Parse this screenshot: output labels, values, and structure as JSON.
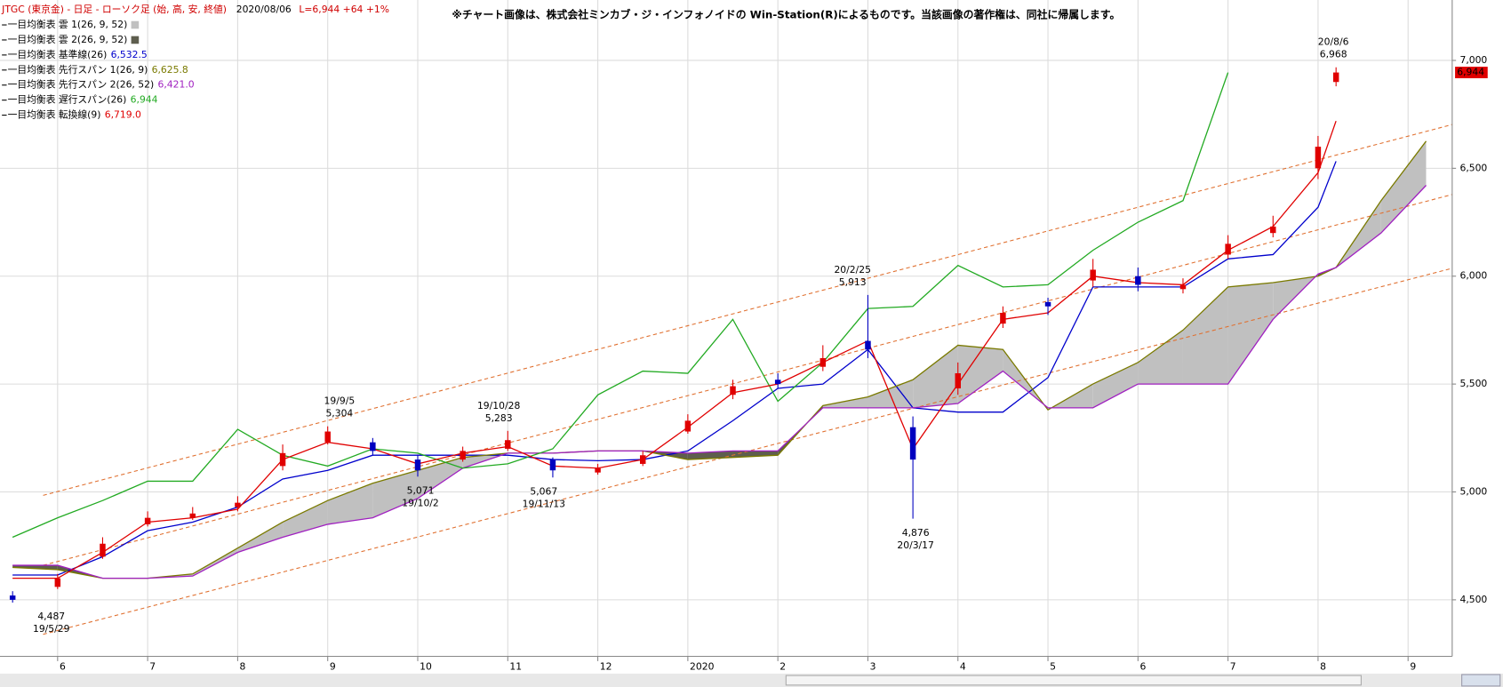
{
  "chart_data": {
    "type": "candlestick",
    "title": "JTGC (東京金) - 日足 - ローソク足 (始, 高, 安, 終値)",
    "date": "2020/08/06",
    "quote": "L=6,944 +64 +1%",
    "note": "※チャート画像は、株式会社ミンカブ・ジ・インフォノイドの Win-Station(R)によるものです。当該画像の著作権は、同社に帰属します。",
    "x": [
      5.5,
      6,
      6.5,
      7,
      7.5,
      8,
      8.5,
      9,
      9.5,
      10,
      10.5,
      11,
      11.5,
      12,
      12.5,
      13,
      13.5,
      14,
      14.5,
      15,
      15.5,
      16,
      16.5,
      17,
      17.5,
      18,
      18.5,
      19,
      19.5,
      20,
      20.2,
      20.7,
      21.2
    ],
    "xlim": [
      5.36,
      21.49
    ],
    "xticks": [
      6,
      7,
      8,
      9,
      10,
      11,
      12,
      {
        "value": 13,
        "label": "2020"
      },
      {
        "value": 14,
        "label": "2"
      },
      {
        "value": 15,
        "label": "3"
      },
      {
        "value": 16,
        "label": "4"
      },
      {
        "value": 17,
        "label": "5"
      },
      {
        "value": 18,
        "label": "6"
      },
      {
        "value": 19,
        "label": "7"
      },
      {
        "value": 20,
        "label": "8"
      },
      {
        "value": 21,
        "label": "9"
      }
    ],
    "ylim": [
      4238,
      7280
    ],
    "yticks": [
      {
        "value": 4500,
        "label": "4,500"
      },
      {
        "value": 5000,
        "label": "5,000"
      },
      {
        "value": 5500,
        "label": "5,500"
      },
      {
        "value": 6000,
        "label": "6,000"
      },
      {
        "value": 6500,
        "label": "6,500"
      },
      {
        "value": 7000,
        "label": "7,000"
      }
    ],
    "grid": true,
    "ohlc": {
      "up_color": "#e00000",
      "down_color": "#0000c0",
      "open": [
        4520,
        4560,
        4700,
        4850,
        4880,
        4930,
        5120,
        5230,
        5230,
        5150,
        5150,
        5200,
        5150,
        5090,
        5130,
        5280,
        5450,
        5520,
        5580,
        5700,
        5300,
        5480,
        5780,
        5880,
        5980,
        6000,
        5940,
        6100,
        6200,
        6500,
        6900,
        null,
        null
      ],
      "high": [
        4540,
        4620,
        4790,
        4910,
        4930,
        4980,
        5220,
        5304,
        5250,
        5170,
        5210,
        5283,
        5160,
        5130,
        5190,
        5360,
        5520,
        5550,
        5680,
        5913,
        5350,
        5600,
        5860,
        5900,
        6080,
        6040,
        5990,
        6190,
        6280,
        6650,
        6968,
        null,
        null
      ],
      "low": [
        4487,
        4550,
        4690,
        4840,
        4870,
        4910,
        5100,
        5220,
        5170,
        5071,
        5140,
        5190,
        5067,
        5080,
        5120,
        5270,
        5430,
        5480,
        5560,
        5620,
        4876,
        5450,
        5760,
        5820,
        5950,
        5930,
        5920,
        6080,
        6180,
        6450,
        6880,
        null,
        null
      ],
      "close": [
        4500,
        4600,
        4760,
        4880,
        4900,
        4950,
        5180,
        5280,
        5190,
        5100,
        5190,
        5240,
        5100,
        5110,
        5170,
        5330,
        5490,
        5500,
        5620,
        5660,
        5150,
        5550,
        5830,
        5860,
        6030,
        5960,
        5960,
        6150,
        6230,
        6600,
        6944,
        null,
        null
      ]
    },
    "cloud": {
      "names": [
        "一目均衡表 雲 1(26, 9, 52)",
        "一目均衡表 雲 2(26, 9, 52)"
      ],
      "colors": [
        "#c0c0c0",
        "#5e5e4e"
      ]
    },
    "series": [
      {
        "name": "一目均衡表 基準線(26)",
        "color": "#0000cc",
        "legend_value": {
          "value": 6532.5,
          "label": "6,532.5"
        },
        "values": [
          4615,
          4615,
          4700,
          4820,
          4860,
          4930,
          5060,
          5100,
          5170,
          5170,
          5170,
          5170,
          5150,
          5145,
          5150,
          5190,
          5330,
          5480,
          5500,
          5660,
          5390,
          5370,
          5370,
          5530,
          5950,
          5950,
          5950,
          6080,
          6100,
          6320,
          6532.5,
          null,
          null
        ]
      },
      {
        "name": "一目均衡表 先行スパン 1(26, 9)",
        "color": "#7a7a00",
        "legend_value": {
          "value": 6625.8,
          "label": "6,625.8"
        },
        "values": [
          4650,
          4640,
          4600,
          4600,
          4620,
          4740,
          4860,
          4960,
          5040,
          5100,
          5160,
          5180,
          5180,
          5190,
          5190,
          5150,
          5160,
          5170,
          5400,
          5440,
          5520,
          5680,
          5660,
          5380,
          5500,
          5600,
          5750,
          5950,
          5970,
          6000,
          6040,
          6350,
          6625.8
        ]
      },
      {
        "name": "一目均衡表 先行スパン 2(26, 52)",
        "color": "#a020c0",
        "legend_value": {
          "value": 6421.0,
          "label": "6,421.0"
        },
        "values": [
          4660,
          4660,
          4600,
          4600,
          4610,
          4720,
          4790,
          4850,
          4880,
          4970,
          5110,
          5180,
          5180,
          5190,
          5190,
          5180,
          5190,
          5190,
          5390,
          5390,
          5390,
          5410,
          5560,
          5390,
          5390,
          5500,
          5500,
          5500,
          5800,
          6010,
          6040,
          6200,
          6421.0
        ]
      },
      {
        "name": "一目均衡表 遅行スパン(26)",
        "color": "#22aa22",
        "legend_value": {
          "value": 6944,
          "label": "6,944"
        },
        "values": [
          4790,
          4880,
          4960,
          5050,
          5050,
          5290,
          5170,
          5120,
          5200,
          5180,
          5110,
          5130,
          5200,
          5450,
          5560,
          5550,
          5800,
          5420,
          5600,
          5850,
          5860,
          6050,
          5950,
          5960,
          6120,
          6250,
          6350,
          6944,
          null,
          null,
          null,
          null,
          null
        ]
      },
      {
        "name": "一目均衡表 転換線(9)",
        "color": "#e00000",
        "legend_value": {
          "value": 6719.0,
          "label": "6,719.0"
        },
        "values": [
          4600,
          4600,
          4720,
          4860,
          4880,
          4920,
          5150,
          5230,
          5200,
          5130,
          5180,
          5210,
          5120,
          5110,
          5150,
          5300,
          5460,
          5500,
          5600,
          5700,
          5200,
          5500,
          5800,
          5830,
          6000,
          5970,
          5960,
          6120,
          6230,
          6480,
          6719.0,
          null,
          null
        ]
      }
    ],
    "annotations": [
      {
        "date": "19/5/29",
        "value": 4487,
        "label": "4,487",
        "x": 5.93,
        "position": "below"
      },
      {
        "date": "19/9/5",
        "value": 5304,
        "label": "5,304",
        "x": 9.13,
        "position": "above"
      },
      {
        "date": "19/10/2",
        "value": 5071,
        "label": "5,071",
        "x": 10.03,
        "position": "below"
      },
      {
        "date": "19/10/28",
        "value": 5283,
        "label": "5,283",
        "x": 10.9,
        "position": "above"
      },
      {
        "date": "19/11/13",
        "value": 5067,
        "label": "5,067",
        "x": 11.4,
        "position": "below"
      },
      {
        "date": "20/2/25",
        "value": 5913,
        "label": "5,913",
        "x": 14.83,
        "position": "above"
      },
      {
        "date": "20/3/17",
        "value": 4876,
        "label": "4,876",
        "x": 15.53,
        "position": "below"
      },
      {
        "date": "20/8/6",
        "value": 6968,
        "label": "6,968",
        "x": 20.17,
        "position": "above"
      }
    ],
    "last_price": {
      "value": 6944,
      "label": "6,944"
    }
  }
}
